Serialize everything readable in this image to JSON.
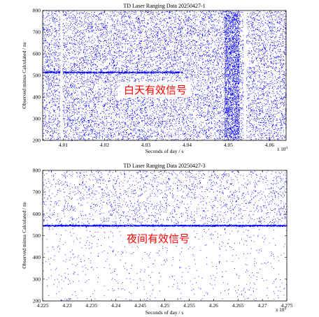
{
  "chart_data": [
    {
      "type": "scatter",
      "title": "TD Laser Ranging Data 20250427-1",
      "xlabel": "Seconds of day / s",
      "ylabel": "Observed minus Calculated / ns",
      "x_exponent_label": "x 10",
      "x_exponent_power": "4",
      "xlim": [
        40050,
        40640
      ],
      "ylim": [
        200,
        800
      ],
      "x_ticks": [
        40100,
        40200,
        40300,
        40400,
        40500,
        40600
      ],
      "x_tick_labels": [
        "4.01",
        "4.02",
        "4.03",
        "4.04",
        "4.05",
        "4.06"
      ],
      "y_ticks": [
        200,
        300,
        400,
        500,
        600,
        700,
        800
      ],
      "y_tick_labels": [
        "200",
        "300",
        "400",
        "500",
        "600",
        "700",
        "800"
      ],
      "marker_color": "#0000ff",
      "noise": {
        "y_range": [
          200,
          800
        ],
        "count": 11000,
        "description": "uniform dense noise points"
      },
      "gaps": [
        [
          40092,
          40098
        ],
        [
          40536,
          40543
        ]
      ],
      "dense_columns": [
        [
          40490,
          40526
        ]
      ],
      "signal": {
        "y_center": 515,
        "x_range": [
          40050,
          40390
        ]
      },
      "annotation": "白天有效信号",
      "grid": false,
      "legend": "none"
    },
    {
      "type": "scatter",
      "title": "TD Laser Ranging Data 20250427-3",
      "xlabel": "Seconds of day / s",
      "ylabel": "Observed minus Calculated / ns",
      "x_exponent_label": "x 10",
      "x_exponent_power": "4",
      "xlim": [
        42250,
        42750
      ],
      "ylim": [
        200,
        800
      ],
      "x_ticks": [
        42250,
        42300,
        42350,
        42400,
        42450,
        42500,
        42550,
        42600,
        42650,
        42700,
        42750
      ],
      "x_tick_labels": [
        "4.225",
        "4.23",
        "4.235",
        "4.24",
        "4.245",
        "4.25",
        "4.255",
        "4.26",
        "4.265",
        "4.27",
        "4.275"
      ],
      "y_ticks": [
        200,
        300,
        400,
        500,
        600,
        700,
        800
      ],
      "y_tick_labels": [
        "200",
        "300",
        "400",
        "500",
        "600",
        "700",
        "800"
      ],
      "marker_color": "#0000ff",
      "noise": {
        "y_range": [
          200,
          800
        ],
        "count": 2600,
        "description": "sparse noise points, denser above 550"
      },
      "signal": {
        "y_center": 547,
        "x_range": [
          42250,
          42750
        ]
      },
      "annotation": "夜间有效信号",
      "grid": false,
      "legend": "none"
    }
  ]
}
